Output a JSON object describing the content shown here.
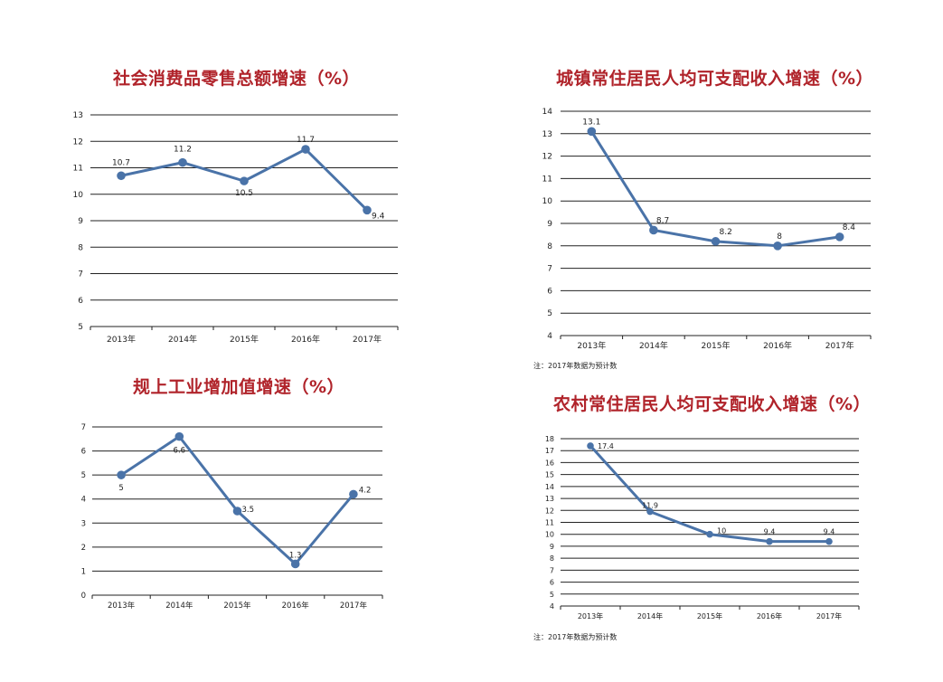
{
  "series_color": "#4a73a8",
  "grid_color": "#222222",
  "title_color": "#b0232a",
  "chart_data": [
    {
      "type": "line",
      "title": "社会消费品零售总额增速（%）",
      "categories": [
        "2013年",
        "2014年",
        "2015年",
        "2016年",
        "2017年"
      ],
      "values": [
        10.7,
        11.2,
        10.5,
        11.7,
        9.4
      ],
      "value_labels": [
        "10.7",
        "11.2",
        "10.5",
        "11.7",
        "9.4"
      ],
      "yticks": [
        "5",
        "6",
        "7",
        "8",
        "9",
        "10",
        "11",
        "12",
        "13"
      ],
      "ylim": [
        5,
        13
      ],
      "ystep": 1,
      "grid": true,
      "note": ""
    },
    {
      "type": "line",
      "title": "城镇常住居民人均可支配收入增速（%）",
      "categories": [
        "2013年",
        "2014年",
        "2015年",
        "2016年",
        "2017年"
      ],
      "values": [
        13.1,
        8.7,
        8.2,
        8,
        8.4
      ],
      "value_labels": [
        "13.1",
        "8.7",
        "8.2",
        "8",
        "8.4"
      ],
      "yticks": [
        "4",
        "5",
        "6",
        "7",
        "8",
        "9",
        "10",
        "11",
        "12",
        "13",
        "14"
      ],
      "ylim": [
        4,
        14
      ],
      "ystep": 1,
      "grid": true,
      "note": "注：2017年数据为预计数"
    },
    {
      "type": "line",
      "title": "规上工业增加值增速（%）",
      "categories": [
        "2013年",
        "2014年",
        "2015年",
        "2016年",
        "2017年"
      ],
      "values": [
        5,
        6.6,
        3.5,
        1.3,
        4.2
      ],
      "value_labels": [
        "5",
        "6.6",
        "3.5",
        "1.3",
        "4.2"
      ],
      "yticks": [
        "0",
        "1",
        "2",
        "3",
        "4",
        "5",
        "6",
        "7"
      ],
      "ylim": [
        0,
        7
      ],
      "ystep": 1,
      "grid": true,
      "note": ""
    },
    {
      "type": "line",
      "title": "农村常住居民人均可支配收入增速（%）",
      "categories": [
        "2013年",
        "2014年",
        "2015年",
        "2016年",
        "2017年"
      ],
      "values": [
        17.4,
        11.9,
        10,
        9.4,
        9.4
      ],
      "value_labels": [
        "17.4",
        "11.9",
        "10",
        "9.4",
        "9.4"
      ],
      "yticks": [
        "4",
        "5",
        "6",
        "7",
        "8",
        "9",
        "10",
        "11",
        "12",
        "13",
        "14",
        "15",
        "16",
        "17",
        "18"
      ],
      "ylim": [
        4,
        18
      ],
      "ystep": 1,
      "grid": true,
      "note": "注：2017年数据为预计数"
    }
  ]
}
